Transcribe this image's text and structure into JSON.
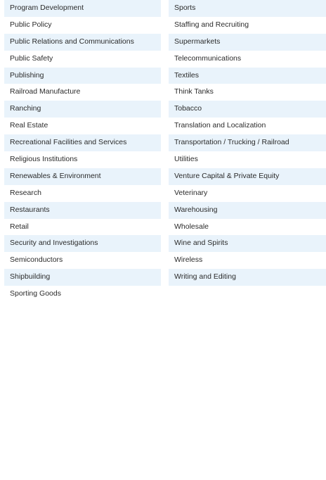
{
  "left_column": [
    "Program Development",
    "Public Policy",
    "Public Relations and Communications",
    "Public Safety",
    "Publishing",
    "Railroad Manufacture",
    "Ranching",
    "Real Estate",
    "Recreational Facilities and Services",
    "Religious Institutions",
    "Renewables & Environment",
    "Research",
    "Restaurants",
    "Retail",
    "Security and Investigations",
    "Semiconductors",
    "Shipbuilding",
    "Sporting Goods"
  ],
  "right_column": [
    "Sports",
    "Staffing and Recruiting",
    "Supermarkets",
    "Telecommunications",
    "Textiles",
    "Think Tanks",
    "Tobacco",
    "Translation and Localization",
    "Transportation / Trucking / Railroad",
    "Utilities",
    "Venture Capital & Private Equity",
    "Veterinary",
    "Warehousing",
    "Wholesale",
    "Wine and Spirits",
    "Wireless",
    "Writing and Editing"
  ],
  "colors": {
    "row_stripe": "#e9f3fb",
    "text": "#2b2b2b",
    "background": "#ffffff"
  }
}
